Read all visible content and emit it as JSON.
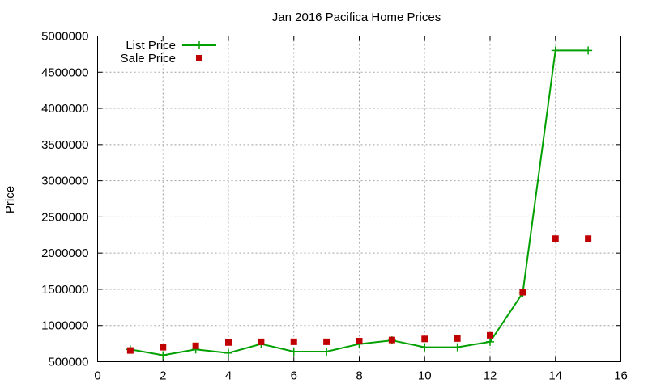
{
  "chart_data": {
    "type": "line",
    "title": "Jan 2016 Pacifica Home Prices",
    "xlabel": "",
    "ylabel": "Price",
    "xlim": [
      0,
      16
    ],
    "ylim": [
      500000,
      5000000
    ],
    "xticks": [
      0,
      2,
      4,
      6,
      8,
      10,
      12,
      14,
      16
    ],
    "yticks": [
      500000,
      1000000,
      1500000,
      2000000,
      2500000,
      3000000,
      3500000,
      4000000,
      4500000,
      5000000
    ],
    "grid": true,
    "legend_position": "top-left",
    "x": [
      1,
      2,
      3,
      4,
      5,
      6,
      7,
      8,
      9,
      10,
      11,
      12,
      13,
      14,
      15
    ],
    "series": [
      {
        "name": "List Price",
        "style": "line+plus-markers",
        "color": "#00a000",
        "values": [
          670000,
          590000,
          670000,
          620000,
          745000,
          640000,
          640000,
          745000,
          795000,
          700000,
          700000,
          775000,
          1450000,
          4800000,
          4800000
        ]
      },
      {
        "name": "Sale Price",
        "style": "square-markers",
        "color": "#c00000",
        "values": [
          655000,
          700000,
          720000,
          765000,
          775000,
          775000,
          775000,
          785000,
          800000,
          815000,
          820000,
          865000,
          1460000,
          2200000,
          2200000
        ]
      }
    ]
  }
}
